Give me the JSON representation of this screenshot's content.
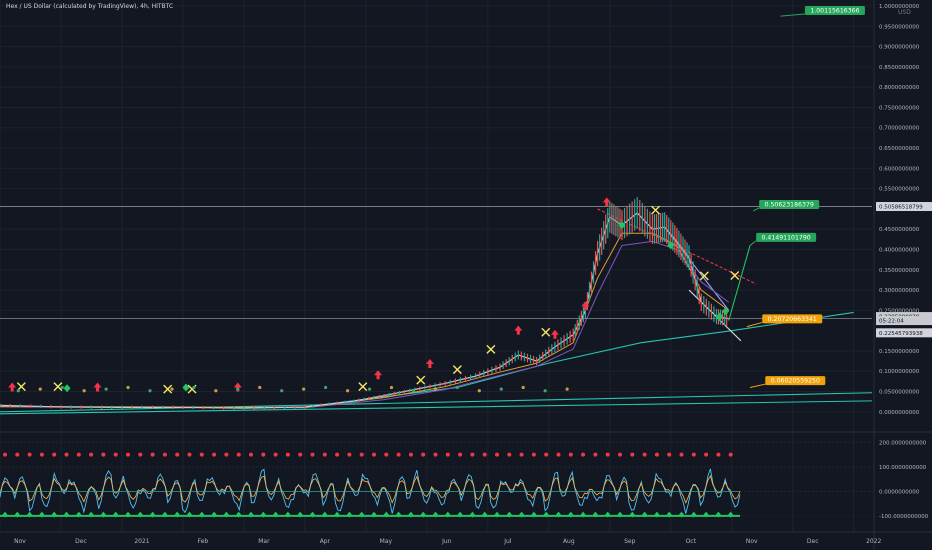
{
  "header": {
    "title": "Hex / US Dollar (calculated by TradingView), 4h, HITBTC",
    "currency": "USD"
  },
  "colors": {
    "background": "#131722",
    "grid": "#1e222d",
    "axis_text": "#b2b5be",
    "callout_green": "#26a65b",
    "callout_orange": "#f0a30a",
    "trend_cyan": "#26c6b0",
    "trend_red": "#f23645",
    "pump_green": "#22c55e",
    "current_price_tag": "#c8cad0"
  },
  "chart_data": {
    "type": "line",
    "title": "Hex / US Dollar (calculated by TradingView), 4h, HITBTC",
    "ylabel": "USD",
    "ylim": [
      -0.03,
      1.0
    ],
    "grid": true,
    "x_tick_labels": [
      "Nov",
      "Dec",
      "2021",
      "Feb",
      "Mar",
      "Apr",
      "May",
      "Jun",
      "Jul",
      "Aug",
      "Sep",
      "Oct",
      "Nov",
      "Dec",
      "2022"
    ],
    "y_tick_labels": [
      "1.0000000000",
      "0.9500000000",
      "0.9000000000",
      "0.8500000000",
      "0.8000000000",
      "0.7500000000",
      "0.7000000000",
      "0.6500000000",
      "0.6000000000",
      "0.5500000000",
      "0.4500000000",
      "0.4000000000",
      "0.3500000000",
      "0.3000000000",
      "0.2500000000",
      "0.1500000000",
      "0.1000000000",
      "0.0500000000",
      "0.0000000000"
    ],
    "price": [
      {
        "x": 0.0,
        "y": 0.016
      },
      {
        "x": 1.0,
        "y": 0.012
      },
      {
        "x": 2.0,
        "y": 0.011
      },
      {
        "x": 3.0,
        "y": 0.011
      },
      {
        "x": 4.0,
        "y": 0.009
      },
      {
        "x": 5.0,
        "y": 0.012
      },
      {
        "x": 5.8,
        "y": 0.026
      },
      {
        "x": 6.3,
        "y": 0.04
      },
      {
        "x": 6.8,
        "y": 0.055
      },
      {
        "x": 7.3,
        "y": 0.07
      },
      {
        "x": 7.8,
        "y": 0.088
      },
      {
        "x": 8.2,
        "y": 0.11
      },
      {
        "x": 8.5,
        "y": 0.14
      },
      {
        "x": 8.8,
        "y": 0.125
      },
      {
        "x": 9.1,
        "y": 0.16
      },
      {
        "x": 9.4,
        "y": 0.19
      },
      {
        "x": 9.6,
        "y": 0.25
      },
      {
        "x": 9.8,
        "y": 0.39
      },
      {
        "x": 10.0,
        "y": 0.48
      },
      {
        "x": 10.2,
        "y": 0.46
      },
      {
        "x": 10.45,
        "y": 0.49
      },
      {
        "x": 10.7,
        "y": 0.45
      },
      {
        "x": 10.9,
        "y": 0.455
      },
      {
        "x": 11.1,
        "y": 0.42
      },
      {
        "x": 11.3,
        "y": 0.38
      },
      {
        "x": 11.5,
        "y": 0.27
      },
      {
        "x": 11.75,
        "y": 0.235
      },
      {
        "x": 11.95,
        "y": 0.2295
      }
    ],
    "ma_fast": [
      {
        "x": 0.0,
        "y": 0.013
      },
      {
        "x": 5.0,
        "y": 0.011
      },
      {
        "x": 6.3,
        "y": 0.035
      },
      {
        "x": 7.3,
        "y": 0.062
      },
      {
        "x": 8.2,
        "y": 0.098
      },
      {
        "x": 8.8,
        "y": 0.12
      },
      {
        "x": 9.4,
        "y": 0.17
      },
      {
        "x": 9.8,
        "y": 0.33
      },
      {
        "x": 10.2,
        "y": 0.44
      },
      {
        "x": 10.7,
        "y": 0.44
      },
      {
        "x": 11.1,
        "y": 0.41
      },
      {
        "x": 11.5,
        "y": 0.3
      },
      {
        "x": 11.95,
        "y": 0.25
      }
    ],
    "ma_slow": [
      {
        "x": 0.0,
        "y": 0.012
      },
      {
        "x": 5.0,
        "y": 0.01
      },
      {
        "x": 6.3,
        "y": 0.03
      },
      {
        "x": 7.3,
        "y": 0.055
      },
      {
        "x": 8.2,
        "y": 0.09
      },
      {
        "x": 8.8,
        "y": 0.112
      },
      {
        "x": 9.4,
        "y": 0.155
      },
      {
        "x": 9.8,
        "y": 0.29
      },
      {
        "x": 10.2,
        "y": 0.41
      },
      {
        "x": 10.7,
        "y": 0.42
      },
      {
        "x": 11.1,
        "y": 0.4
      },
      {
        "x": 11.5,
        "y": 0.32
      },
      {
        "x": 11.95,
        "y": 0.27
      }
    ],
    "trendlines": [
      {
        "name": "support_curve",
        "color": "#26c6b0",
        "points": [
          {
            "x": 5.0,
            "y": 0.012
          },
          {
            "x": 7.5,
            "y": 0.06
          },
          {
            "x": 9.0,
            "y": 0.12
          },
          {
            "x": 10.5,
            "y": 0.17
          },
          {
            "x": 12.0,
            "y": 0.2
          },
          {
            "x": 14.0,
            "y": 0.245
          }
        ]
      },
      {
        "name": "long_support_1",
        "color": "#26c6b0",
        "points": [
          {
            "x": 0.0,
            "y": 0.0
          },
          {
            "x": 14.3,
            "y": 0.047
          }
        ]
      },
      {
        "name": "long_support_2",
        "color": "#26c6b0",
        "points": [
          {
            "x": 0.0,
            "y": -0.005
          },
          {
            "x": 14.3,
            "y": 0.027
          }
        ]
      },
      {
        "name": "resistance",
        "color": "#f23645",
        "points": [
          {
            "x": 9.8,
            "y": 0.5
          },
          {
            "x": 12.4,
            "y": 0.315
          }
        ]
      },
      {
        "name": "wedge_top",
        "color": "#9aa4ff",
        "points": [
          {
            "x": 10.9,
            "y": 0.455
          },
          {
            "x": 11.95,
            "y": 0.25
          }
        ]
      },
      {
        "name": "wedge_bottom",
        "color": "#d1d4dc",
        "points": [
          {
            "x": 11.3,
            "y": 0.3
          },
          {
            "x": 12.15,
            "y": 0.175
          }
        ]
      },
      {
        "name": "projection",
        "color": "#22c55e",
        "points": [
          {
            "x": 11.95,
            "y": 0.225
          },
          {
            "x": 12.3,
            "y": 0.41
          }
        ]
      },
      {
        "name": "level_0506",
        "color": "#9aa0ac",
        "points": [
          {
            "x": 0.0,
            "y": 0.5059
          },
          {
            "x": 14.3,
            "y": 0.5059
          }
        ]
      },
      {
        "name": "level_0230",
        "color": "#9aa0ac",
        "points": [
          {
            "x": 0.0,
            "y": 0.2295
          },
          {
            "x": 14.3,
            "y": 0.2295
          }
        ]
      }
    ],
    "annotations": [
      {
        "label": "1.00115616366",
        "x": 13.2,
        "y": 1.0,
        "arrow_x": 12.8,
        "arrow_y": 0.975,
        "color": "#26a65b"
      },
      {
        "label": "0.50623186379",
        "x": 12.45,
        "y": 0.522,
        "arrow_x": 12.35,
        "arrow_y": 0.495,
        "color": "#26a65b"
      },
      {
        "label": "0.41491101790",
        "x": 12.4,
        "y": 0.441,
        "arrow_x": 12.3,
        "arrow_y": 0.41,
        "color": "#26a65b"
      },
      {
        "label": "0.20720663341",
        "x": 12.5,
        "y": 0.24,
        "arrow_x": 12.25,
        "arrow_y": 0.21,
        "color": "#f0a30a"
      },
      {
        "label": "0.06020559250",
        "x": 12.55,
        "y": 0.088,
        "arrow_x": 12.3,
        "arrow_y": 0.06,
        "color": "#f0a30a"
      }
    ],
    "price_tags": [
      {
        "label": "0.50586518799",
        "y": 0.5059,
        "color": "#d1d4dc"
      },
      {
        "label": "0.2295000038",
        "y": 0.2347,
        "color": "#c8cad0"
      },
      {
        "label": "05:22:04",
        "y": 0.2249,
        "color": "#c8cad0"
      },
      {
        "label": "0.22545793938",
        "y": 0.1947,
        "color": "#d1d4dc"
      }
    ],
    "signals": {
      "sell_x": [
        {
          "x": 0.35,
          "y": 0.062
        },
        {
          "x": 0.95,
          "y": 0.062
        },
        {
          "x": 2.75,
          "y": 0.056
        },
        {
          "x": 3.15,
          "y": 0.056
        },
        {
          "x": 5.95,
          "y": 0.062
        },
        {
          "x": 6.9,
          "y": 0.078
        },
        {
          "x": 7.5,
          "y": 0.104
        },
        {
          "x": 8.05,
          "y": 0.154
        },
        {
          "x": 8.95,
          "y": 0.196
        },
        {
          "x": 10.75,
          "y": 0.497
        },
        {
          "x": 11.55,
          "y": 0.335
        },
        {
          "x": 12.05,
          "y": 0.336
        }
      ],
      "red_arrows": [
        {
          "x": 0.2,
          "y": 0.06
        },
        {
          "x": 1.6,
          "y": 0.06
        },
        {
          "x": 3.9,
          "y": 0.06
        },
        {
          "x": 6.2,
          "y": 0.09
        },
        {
          "x": 7.05,
          "y": 0.118
        },
        {
          "x": 8.5,
          "y": 0.2
        },
        {
          "x": 9.1,
          "y": 0.19
        },
        {
          "x": 9.6,
          "y": 0.26
        },
        {
          "x": 9.95,
          "y": 0.516
        }
      ],
      "green_arrows": [
        {
          "x": 1.1,
          "y": 0.058
        },
        {
          "x": 3.05,
          "y": 0.06
        },
        {
          "x": 10.2,
          "y": 0.46
        },
        {
          "x": 11.0,
          "y": 0.41
        },
        {
          "x": 11.8,
          "y": 0.235
        },
        {
          "x": 11.9,
          "y": 0.248
        }
      ]
    }
  },
  "oscillator": {
    "ylim": [
      -125,
      210
    ],
    "y_tick_labels": [
      "200.0000000000",
      "100.0000000000",
      "0.0000000000",
      "-100.0000000000"
    ]
  }
}
